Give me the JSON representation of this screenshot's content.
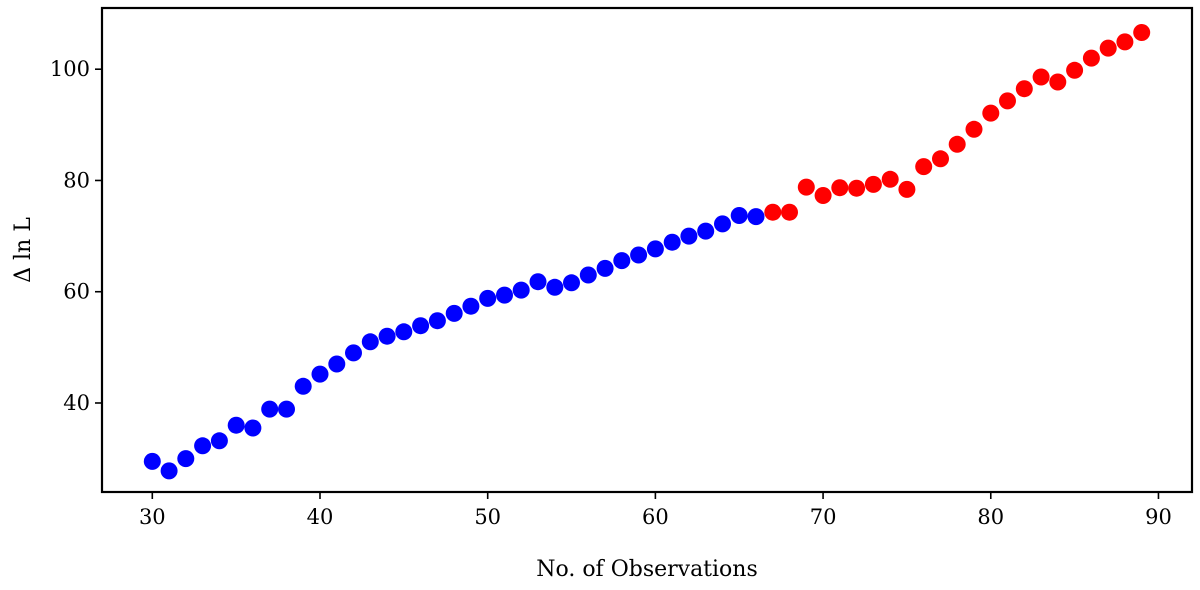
{
  "chart_data": {
    "type": "scatter",
    "title": "",
    "xlabel": "No. of Observations",
    "ylabel": "Δ ln L",
    "xlim": [
      27,
      92
    ],
    "ylim": [
      24,
      111
    ],
    "xticks": [
      30,
      40,
      50,
      60,
      70,
      80,
      90
    ],
    "yticks": [
      40,
      60,
      80,
      100
    ],
    "grid": false,
    "legend": "none",
    "series": [
      {
        "color": "#0000ff",
        "x": [
          30,
          31,
          32,
          33,
          34,
          35,
          36,
          37,
          38,
          39,
          40,
          41,
          42,
          43,
          44,
          45,
          46,
          47,
          48,
          49,
          50,
          51,
          52,
          53,
          54,
          55,
          56,
          57,
          58,
          59,
          60,
          61,
          62,
          63,
          64,
          65,
          66
        ],
        "y": [
          29.5,
          27.8,
          30.0,
          32.3,
          33.2,
          36.0,
          35.5,
          38.9,
          38.9,
          43.0,
          45.2,
          47.0,
          49.0,
          51.0,
          52.0,
          52.8,
          53.9,
          54.8,
          56.1,
          57.4,
          58.8,
          59.4,
          60.3,
          61.8,
          60.8,
          61.6,
          63.0,
          64.2,
          65.6,
          66.6,
          67.7,
          68.9,
          70.0,
          70.9,
          72.2,
          73.7,
          73.5
        ]
      },
      {
        "color": "#ff0000",
        "x": [
          67,
          68,
          69,
          70,
          71,
          72,
          73,
          74,
          75,
          76,
          77,
          78,
          79,
          80,
          81,
          82,
          83,
          84,
          85,
          86,
          87,
          88,
          89
        ],
        "y": [
          74.3,
          74.3,
          78.8,
          77.3,
          78.7,
          78.6,
          79.3,
          80.2,
          78.4,
          82.5,
          83.9,
          86.5,
          89.2,
          92.1,
          94.3,
          96.5,
          98.6,
          97.7,
          99.8,
          102.0,
          103.8,
          104.9,
          106.6
        ]
      }
    ]
  }
}
